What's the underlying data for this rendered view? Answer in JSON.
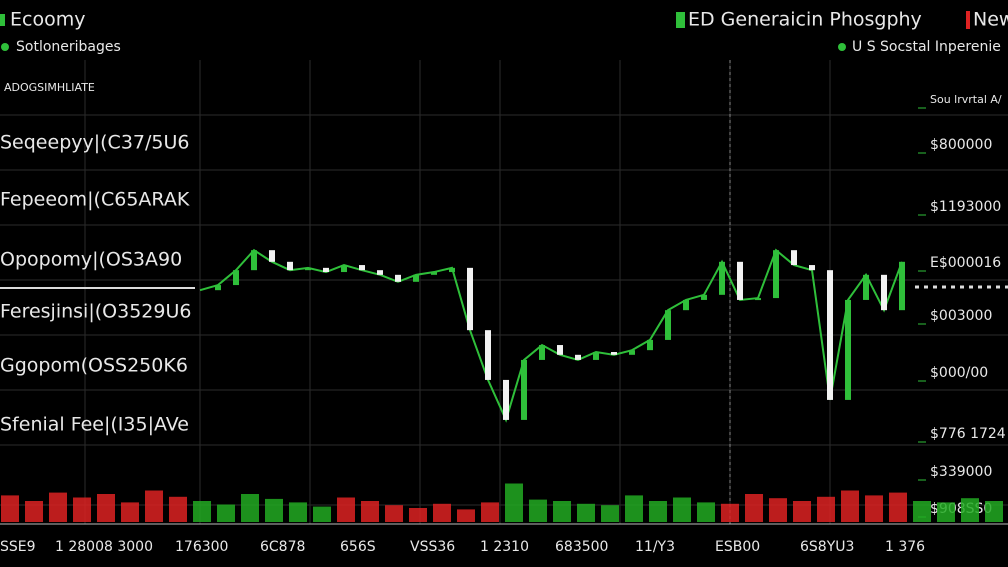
{
  "header": {
    "left_title": "Ecoomy",
    "left_subtitle": "Sotloneribages",
    "left_caption": "ADOGSIMHLIATE",
    "right_title": "ED Generaicin Phosgphy",
    "right_badge": "New",
    "right_subtitle": "U S  Socstal Inperenie"
  },
  "left_labels": [
    "Seqeepyy|(C37/5U6",
    "Fepeeom|(C65ARAK",
    "Opopomy|(OS3A90",
    "Feresjinsi|(O3529U6",
    "Ggopom(OSS250K6",
    "Sfenial Fee|(I35|AVe"
  ],
  "right_labels": [
    "Sou lrvrtal A/",
    "$800000",
    "$1193000",
    "E$000016",
    "$003000",
    "$000/00",
    "$776 1724",
    "$339000",
    "$908SS0"
  ],
  "x_labels": [
    "SSE9",
    "1 28008 3000",
    "176300",
    "6C878",
    "656S",
    "VSS36",
    "1 2310",
    "683500",
    "11/Y3",
    "ESB00",
    "6S8YU3",
    "1 376"
  ],
  "price": {
    "color": "#2fbf3a",
    "ylim": [
      0,
      100
    ],
    "values": [
      50.5,
      51.6,
      54.8,
      59.1,
      56.6,
      54.8,
      55.3,
      54.4,
      55.9,
      54.8,
      53.8,
      52.3,
      53.8,
      54.4,
      55.3,
      41.9,
      31.2,
      22.6,
      35.5,
      38.7,
      36.6,
      35.5,
      37.2,
      36.6,
      37.6,
      39.8,
      46.2,
      48.4,
      49.5,
      56.6,
      48.4,
      48.8,
      59.1,
      55.9,
      54.8,
      26.9,
      48.4,
      53.8,
      46.2,
      56.6
    ]
  },
  "volume": {
    "ylim": [
      0,
      100
    ],
    "values": [
      38,
      30,
      42,
      35,
      40,
      28,
      45,
      36,
      30,
      25,
      40,
      33,
      28,
      22,
      35,
      30,
      24,
      20,
      26,
      18,
      28,
      55,
      32,
      30,
      26,
      24,
      38,
      30,
      35,
      28,
      26,
      40,
      34,
      30,
      36,
      45,
      38,
      42,
      30,
      28,
      34,
      30
    ],
    "colors": [
      "#d22",
      "#d22",
      "#d22",
      "#d22",
      "#d22",
      "#d22",
      "#d22",
      "#d22",
      "#2a2",
      "#2a2",
      "#2a2",
      "#2a2",
      "#2a2",
      "#2a2",
      "#d22",
      "#d22",
      "#d22",
      "#d22",
      "#d22",
      "#d22",
      "#d22",
      "#2a2",
      "#2a2",
      "#2a2",
      "#2a2",
      "#2a2",
      "#2a2",
      "#2a2",
      "#2a2",
      "#2a2",
      "#d22",
      "#d22",
      "#d22",
      "#d22",
      "#d22",
      "#d22",
      "#d22",
      "#d22",
      "#2a2",
      "#2a2",
      "#2a2",
      "#2a2"
    ]
  }
}
